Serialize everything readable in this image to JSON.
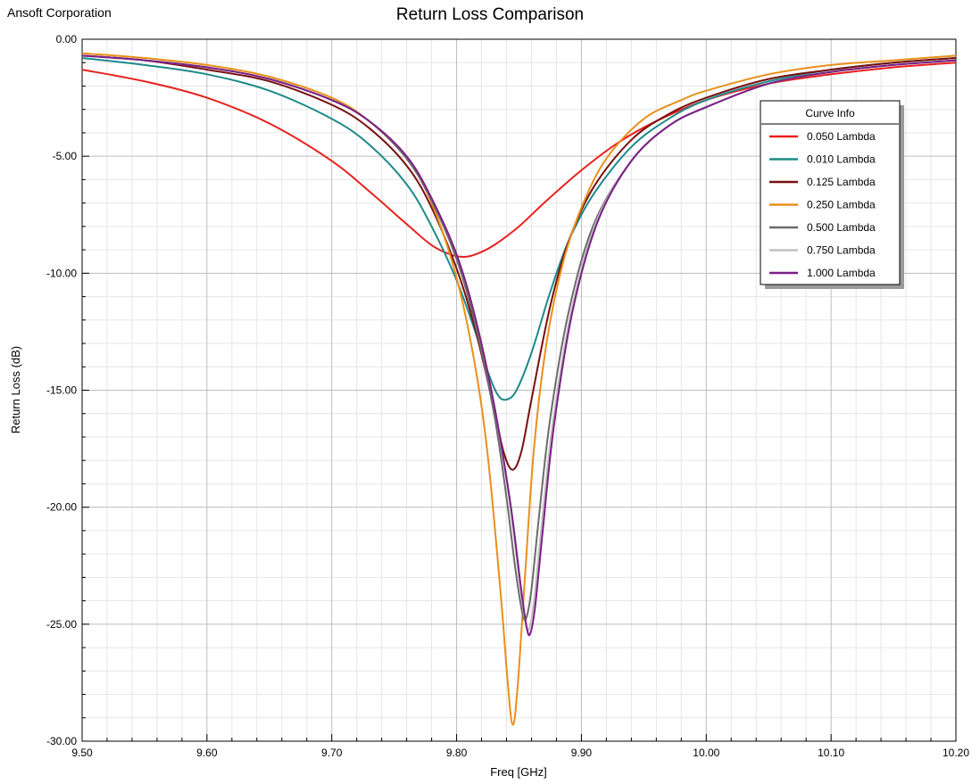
{
  "header": {
    "brand": "Ansoft Corporation"
  },
  "chart_data": {
    "type": "line",
    "title": "Return Loss Comparison",
    "xlabel": "Freq [GHz]",
    "ylabel": "Return Loss (dB)",
    "xlim": [
      9.5,
      10.2
    ],
    "ylim": [
      -30,
      0
    ],
    "x_ticks": [
      "9.50",
      "9.60",
      "9.70",
      "9.80",
      "9.90",
      "10.00",
      "10.10",
      "10.20"
    ],
    "y_ticks": [
      "0.00",
      "-5.00",
      "-10.00",
      "-15.00",
      "-20.00",
      "-25.00",
      "-30.00"
    ],
    "grid": true,
    "legend": {
      "title": "Curve Info",
      "placement": "top-right"
    },
    "series": [
      {
        "name": "0.050 Lambda",
        "color": "#e8211d",
        "x": [
          9.5,
          9.55,
          9.6,
          9.65,
          9.7,
          9.73,
          9.76,
          9.78,
          9.795,
          9.805,
          9.815,
          9.83,
          9.85,
          9.87,
          9.9,
          9.93,
          9.96,
          10.0,
          10.05,
          10.1,
          10.15,
          10.2
        ],
        "y": [
          -1.3,
          -1.8,
          -2.5,
          -3.6,
          -5.2,
          -6.5,
          -7.9,
          -8.8,
          -9.2,
          -9.3,
          -9.2,
          -8.8,
          -8.0,
          -7.0,
          -5.6,
          -4.4,
          -3.5,
          -2.6,
          -1.9,
          -1.5,
          -1.2,
          -1.0
        ]
      },
      {
        "name": "0.010 Lambda",
        "color": "#1e8a8a",
        "x": [
          9.5,
          9.55,
          9.6,
          9.65,
          9.7,
          9.73,
          9.76,
          9.78,
          9.8,
          9.815,
          9.825,
          9.833,
          9.84,
          9.848,
          9.86,
          9.875,
          9.89,
          9.91,
          9.94,
          9.97,
          10.0,
          10.05,
          10.1,
          10.15,
          10.2
        ],
        "y": [
          -0.8,
          -1.1,
          -1.5,
          -2.2,
          -3.4,
          -4.5,
          -6.2,
          -8.0,
          -10.3,
          -12.5,
          -14.2,
          -15.2,
          -15.4,
          -15.0,
          -13.4,
          -10.8,
          -8.6,
          -6.6,
          -4.6,
          -3.4,
          -2.6,
          -1.8,
          -1.3,
          -1.0,
          -0.8
        ]
      },
      {
        "name": "0.125 Lambda",
        "color": "#7a1010",
        "x": [
          9.5,
          9.55,
          9.6,
          9.65,
          9.7,
          9.73,
          9.76,
          9.78,
          9.8,
          9.815,
          9.83,
          9.838,
          9.845,
          9.852,
          9.86,
          9.875,
          9.89,
          9.91,
          9.94,
          9.97,
          10.0,
          10.05,
          10.1,
          10.15,
          10.2
        ],
        "y": [
          -0.7,
          -0.9,
          -1.3,
          -1.8,
          -2.8,
          -3.8,
          -5.4,
          -7.2,
          -9.8,
          -12.4,
          -15.8,
          -17.7,
          -18.4,
          -17.6,
          -15.4,
          -11.4,
          -8.6,
          -6.3,
          -4.3,
          -3.2,
          -2.5,
          -1.7,
          -1.3,
          -1.0,
          -0.8
        ]
      },
      {
        "name": "0.250 Lambda",
        "color": "#e8901a",
        "x": [
          9.5,
          9.55,
          9.6,
          9.65,
          9.7,
          9.73,
          9.76,
          9.78,
          9.8,
          9.815,
          9.825,
          9.835,
          9.841,
          9.845,
          9.849,
          9.855,
          9.862,
          9.872,
          9.885,
          9.9,
          9.92,
          9.95,
          9.98,
          10.0,
          10.05,
          10.1,
          10.15,
          10.2
        ],
        "y": [
          -0.6,
          -0.8,
          -1.1,
          -1.6,
          -2.5,
          -3.5,
          -5.1,
          -7.0,
          -10.2,
          -14.0,
          -17.8,
          -23.5,
          -27.5,
          -29.3,
          -27.6,
          -22.8,
          -17.5,
          -13.0,
          -9.6,
          -7.2,
          -5.1,
          -3.4,
          -2.6,
          -2.2,
          -1.5,
          -1.1,
          -0.9,
          -0.7
        ]
      },
      {
        "name": "0.500 Lambda",
        "color": "#6b6b6b",
        "x": [
          9.5,
          9.55,
          9.6,
          9.65,
          9.7,
          9.73,
          9.76,
          9.78,
          9.8,
          9.815,
          9.83,
          9.84,
          9.847,
          9.853,
          9.856,
          9.86,
          9.866,
          9.875,
          9.89,
          9.91,
          9.94,
          9.97,
          10.0,
          10.05,
          10.1,
          10.15,
          10.2
        ],
        "y": [
          -0.7,
          -0.9,
          -1.2,
          -1.7,
          -2.6,
          -3.5,
          -5.1,
          -6.9,
          -9.4,
          -12.2,
          -16.0,
          -19.6,
          -22.6,
          -24.6,
          -24.7,
          -23.5,
          -20.4,
          -16.2,
          -11.6,
          -7.9,
          -5.2,
          -3.7,
          -2.9,
          -1.9,
          -1.4,
          -1.1,
          -0.9
        ]
      },
      {
        "name": "0.750 Lambda",
        "color": "#c0c0c0",
        "x": [
          9.5,
          9.55,
          9.6,
          9.65,
          9.7,
          9.73,
          9.76,
          9.78,
          9.8,
          9.815,
          9.83,
          9.842,
          9.85,
          9.855,
          9.858,
          9.862,
          9.868,
          9.877,
          9.892,
          9.912,
          9.94,
          9.97,
          10.0,
          10.05,
          10.1,
          10.15,
          10.2
        ],
        "y": [
          -0.7,
          -0.9,
          -1.2,
          -1.7,
          -2.6,
          -3.5,
          -5.0,
          -6.8,
          -9.2,
          -11.9,
          -15.6,
          -19.6,
          -23.0,
          -24.9,
          -25.2,
          -24.0,
          -20.8,
          -16.4,
          -11.6,
          -7.8,
          -5.2,
          -3.7,
          -2.9,
          -1.9,
          -1.4,
          -1.1,
          -0.9
        ]
      },
      {
        "name": "1.000 Lambda",
        "color": "#7b1f86",
        "x": [
          9.5,
          9.55,
          9.6,
          9.65,
          9.7,
          9.73,
          9.76,
          9.78,
          9.8,
          9.815,
          9.83,
          9.843,
          9.851,
          9.856,
          9.859,
          9.863,
          9.869,
          9.878,
          9.893,
          9.913,
          9.94,
          9.97,
          10.0,
          10.05,
          10.1,
          10.15,
          10.2
        ],
        "y": [
          -0.7,
          -0.9,
          -1.2,
          -1.7,
          -2.6,
          -3.5,
          -5.0,
          -6.8,
          -9.2,
          -11.9,
          -15.6,
          -19.8,
          -23.2,
          -25.1,
          -25.4,
          -24.2,
          -21.0,
          -16.5,
          -11.6,
          -7.8,
          -5.2,
          -3.7,
          -2.9,
          -1.9,
          -1.4,
          -1.1,
          -0.9
        ]
      }
    ]
  }
}
